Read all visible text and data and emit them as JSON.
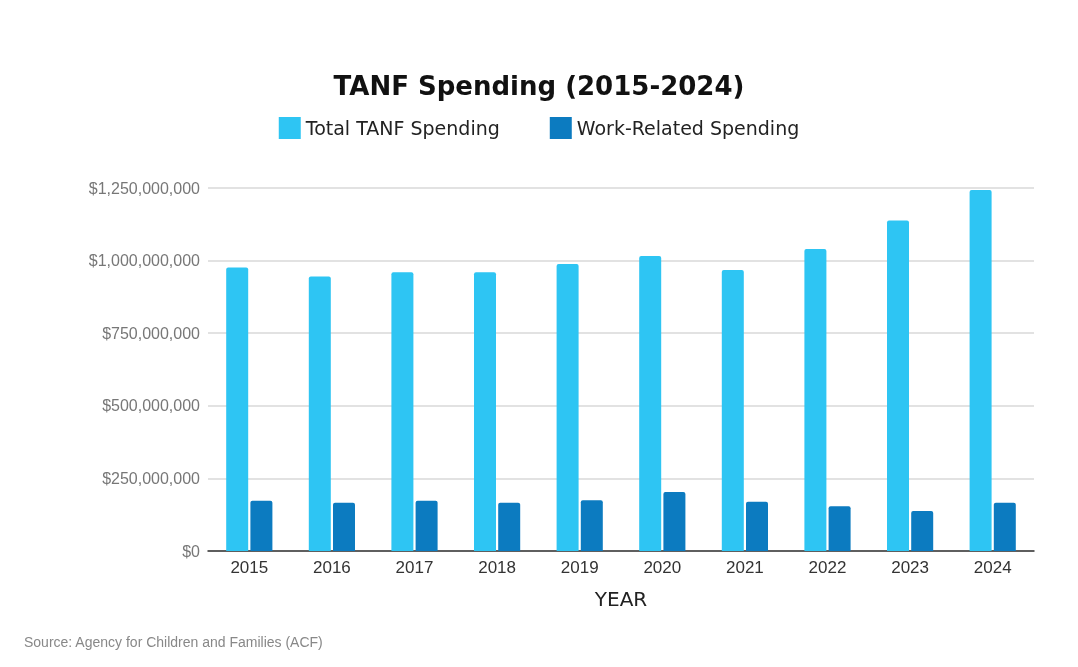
{
  "chart_data": {
    "type": "bar",
    "title": "TANF Spending (2015-2024)",
    "xlabel": "YEAR",
    "categories": [
      "2015",
      "2016",
      "2017",
      "2018",
      "2019",
      "2020",
      "2021",
      "2022",
      "2023",
      "2024"
    ],
    "series": [
      {
        "name": "Total TANF Spending",
        "color": "#2ec5f3",
        "values": [
          976000000,
          945000000,
          960000000,
          960000000,
          988000000,
          1016000000,
          968000000,
          1040000000,
          1138000000,
          1243000000
        ]
      },
      {
        "name": "Work-Related Spending",
        "color": "#0c7bc0",
        "values": [
          173000000,
          166000000,
          173000000,
          166000000,
          175000000,
          203000000,
          170000000,
          154000000,
          138000000,
          166000000
        ]
      }
    ],
    "ylim": [
      0,
      1250000000
    ],
    "yticks": [
      {
        "value": 0,
        "label": "$0"
      },
      {
        "value": 250000000,
        "label": "$250,000,000"
      },
      {
        "value": 500000000,
        "label": "$500,000,000"
      },
      {
        "value": 750000000,
        "label": "$750,000,000"
      },
      {
        "value": 1000000000,
        "label": "$1,000,000,000"
      },
      {
        "value": 1250000000,
        "label": "$1,250,000,000"
      }
    ],
    "grid": "y",
    "legend": "top",
    "annotations": [
      "Source: Agency for Children and Families (ACF)"
    ]
  }
}
